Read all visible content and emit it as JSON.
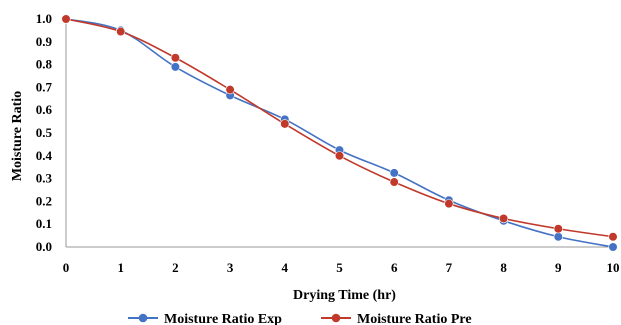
{
  "chart_data": {
    "type": "line",
    "xlabel": "Drying Time (hr)",
    "ylabel": "Moisture Ratio",
    "x": [
      0,
      1,
      2,
      3,
      4,
      5,
      6,
      7,
      8,
      9,
      10
    ],
    "xlim": [
      0,
      10
    ],
    "ylim": [
      0.0,
      1.0
    ],
    "x_ticks": [
      "0",
      "1",
      "2",
      "3",
      "4",
      "5",
      "6",
      "7",
      "8",
      "9",
      "10"
    ],
    "y_ticks": [
      "0.0",
      "0.1",
      "0.2",
      "0.3",
      "0.4",
      "0.5",
      "0.6",
      "0.7",
      "0.8",
      "0.9",
      "1.0"
    ],
    "grid": false,
    "legend_position": "bottom",
    "series": [
      {
        "name": "Moisture Ratio Exp",
        "color": "#4472C4",
        "values": [
          1.0,
          0.95,
          0.79,
          0.665,
          0.56,
          0.425,
          0.325,
          0.205,
          0.115,
          0.045,
          0.0
        ]
      },
      {
        "name": "Moisture Ratio Pre",
        "color": "#C0392B",
        "values": [
          1.0,
          0.945,
          0.83,
          0.69,
          0.54,
          0.4,
          0.285,
          0.19,
          0.125,
          0.08,
          0.045
        ]
      }
    ]
  }
}
